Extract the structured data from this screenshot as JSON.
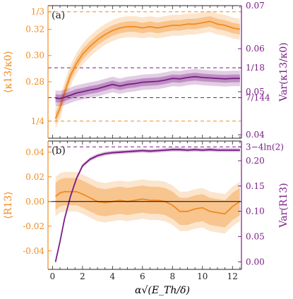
{
  "colors": {
    "orange": "#f28a1c",
    "purple": "#7a1d86",
    "black": "#000000"
  },
  "chart_data": [
    {
      "type": "line",
      "panel_label": "(a)",
      "x_range": [
        -0.3,
        12.6
      ],
      "left_axis": {
        "label": "⟨κ13/κ0⟩",
        "ylim": [
          0.237,
          0.338
        ],
        "ticks": [
          0.28,
          0.3,
          0.32
        ],
        "special_ticks": [
          {
            "value": 0.3333,
            "label": "1/3"
          },
          {
            "value": 0.25,
            "label": "1/4"
          }
        ]
      },
      "right_axis": {
        "label": "Var(κ13/κ0)",
        "ylim": [
          0.0392,
          0.07
        ],
        "ticks": [
          0.04,
          0.05,
          0.06,
          0.07
        ],
        "tick_labels": [
          "0.04",
          "0.05",
          "0.06",
          "0.07"
        ],
        "special_ticks": [
          {
            "value": 0.05556,
            "label": "1/18"
          },
          {
            "value": 0.04861,
            "label": "7/144"
          }
        ]
      },
      "series": [
        {
          "axis": "left",
          "color": "orange",
          "x": [
            0.2,
            0.5,
            0.8,
            1.2,
            1.6,
            2.0,
            2.5,
            3.0,
            3.5,
            4.0,
            4.5,
            5.0,
            5.5,
            6.0,
            6.5,
            7.0,
            7.5,
            8.0,
            8.5,
            9.0,
            9.5,
            10.0,
            10.5,
            11.0,
            11.5,
            12.0,
            12.5
          ],
          "y": [
            0.252,
            0.26,
            0.272,
            0.285,
            0.294,
            0.301,
            0.307,
            0.312,
            0.316,
            0.319,
            0.321,
            0.322,
            0.322,
            0.321,
            0.322,
            0.321,
            0.322,
            0.323,
            0.323,
            0.324,
            0.324,
            0.325,
            0.326,
            0.324,
            0.323,
            0.321,
            0.32
          ],
          "band_inner": 0.004,
          "band_outer": 0.008
        },
        {
          "axis": "right",
          "color": "purple",
          "x": [
            0.2,
            0.5,
            0.8,
            1.2,
            1.6,
            2.0,
            2.5,
            3.0,
            3.5,
            4.0,
            4.5,
            5.0,
            5.5,
            6.0,
            6.5,
            7.0,
            7.5,
            8.0,
            8.5,
            9.0,
            9.5,
            10.0,
            10.5,
            11.0,
            11.5,
            12.0,
            12.5
          ],
          "y": [
            0.0485,
            0.0484,
            0.0487,
            0.0492,
            0.0497,
            0.05,
            0.0504,
            0.0507,
            0.0512,
            0.0517,
            0.0513,
            0.0517,
            0.0519,
            0.0522,
            0.0523,
            0.0524,
            0.0527,
            0.0531,
            0.053,
            0.0533,
            0.0535,
            0.0533,
            0.0532,
            0.0531,
            0.053,
            0.0531,
            0.0531
          ],
          "band_inner": 0.0009,
          "band_outer": 0.0018
        }
      ]
    },
    {
      "type": "line",
      "panel_label": "(b)",
      "x_range": [
        -0.3,
        12.6
      ],
      "xlabel": "α√(E_Th/δ)",
      "xticks": [
        0,
        2,
        4,
        6,
        8,
        10,
        12
      ],
      "left_axis": {
        "label": "⟨R13⟩",
        "ylim": [
          -0.055,
          0.049
        ],
        "ticks": [
          -0.04,
          -0.02,
          0.0,
          0.02,
          0.04
        ],
        "tick_labels": [
          "-0.04",
          "-0.02",
          "0.00",
          "0.02",
          "0.04"
        ]
      },
      "right_axis": {
        "label": "Var(R13)",
        "ylim": [
          -0.015,
          0.239
        ],
        "ticks": [
          0.0,
          0.05,
          0.1,
          0.15,
          0.2
        ],
        "tick_labels": [
          "0.00",
          "0.05",
          "0.10",
          "0.15",
          "0.20"
        ],
        "special_ticks": [
          {
            "value": 0.2274,
            "label": "3−4ln(2)"
          }
        ]
      },
      "zero_line": 0.0,
      "series": [
        {
          "axis": "left",
          "color": "orange",
          "x": [
            0.2,
            0.5,
            0.8,
            1.2,
            1.6,
            2.0,
            2.5,
            3.0,
            3.5,
            4.0,
            4.5,
            5.0,
            5.5,
            6.0,
            6.5,
            7.0,
            7.5,
            8.0,
            8.5,
            9.0,
            9.5,
            10.0,
            10.5,
            11.0,
            11.5,
            12.0,
            12.5
          ],
          "y": [
            0.004,
            0.007,
            0.008,
            0.008,
            0.008,
            0.006,
            0.003,
            0.0,
            -0.001,
            0.0,
            0.001,
            0.0,
            0.001,
            0.002,
            0.001,
            0.001,
            0.0,
            -0.003,
            -0.008,
            -0.008,
            -0.006,
            -0.005,
            -0.008,
            -0.009,
            -0.01,
            -0.004,
            0.0
          ],
          "band_inner": 0.011,
          "band_outer": 0.016
        },
        {
          "axis": "right",
          "color": "purple",
          "x": [
            0.2,
            0.5,
            0.8,
            1.2,
            1.6,
            2.0,
            2.5,
            3.0,
            3.5,
            4.0,
            4.5,
            5.0,
            5.5,
            6.0,
            6.5,
            7.0,
            7.5,
            8.0,
            8.5,
            9.0,
            9.5,
            10.0,
            10.5,
            11.0,
            11.5,
            12.0,
            12.5
          ],
          "y": [
            0.0,
            0.04,
            0.085,
            0.13,
            0.165,
            0.19,
            0.203,
            0.21,
            0.214,
            0.216,
            0.217,
            0.218,
            0.219,
            0.22,
            0.219,
            0.22,
            0.221,
            0.222,
            0.222,
            0.221,
            0.222,
            0.221,
            0.222,
            0.221,
            0.221,
            0.221,
            0.221
          ],
          "band_inner": 0.002,
          "band_outer": 0.004
        }
      ]
    }
  ]
}
